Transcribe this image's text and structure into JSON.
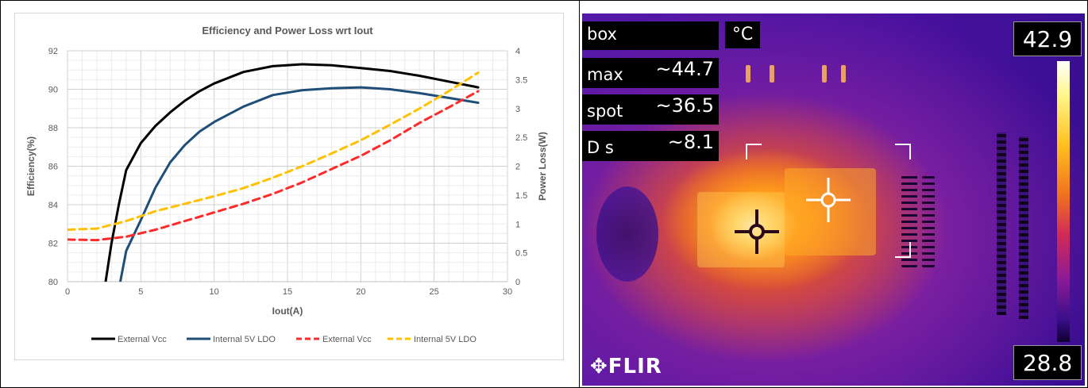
{
  "chart_data": {
    "type": "line",
    "title": "Efficiency and Power Loss wrt Iout",
    "xlabel": "Iout(A)",
    "ylabel": "Efficiency(%)",
    "y2label": "Power Loss(W)",
    "xlim": [
      0,
      30
    ],
    "ylim": [
      80,
      92
    ],
    "y2lim": [
      0,
      4
    ],
    "xticks": [
      "0",
      "5",
      "10",
      "15",
      "20",
      "25",
      "30"
    ],
    "yticks": [
      "80",
      "82",
      "84",
      "86",
      "88",
      "90",
      "92"
    ],
    "y2ticks": [
      "0",
      "0.5",
      "1",
      "1.5",
      "2",
      "2.5",
      "3",
      "3.5",
      "4"
    ],
    "grid": true,
    "legend_position": "bottom",
    "series": [
      {
        "name": "External Vcc",
        "axis": "left",
        "color": "#000000",
        "dash": false,
        "x": [
          2.6,
          3,
          3.5,
          4,
          5,
          6,
          7,
          8,
          9,
          10,
          12,
          14,
          16,
          18,
          20,
          22,
          24,
          26,
          28
        ],
        "y": [
          80,
          82,
          84,
          85.8,
          87.2,
          88.1,
          88.8,
          89.4,
          89.9,
          90.3,
          90.9,
          91.2,
          91.3,
          91.25,
          91.1,
          90.95,
          90.7,
          90.4,
          90.1
        ]
      },
      {
        "name": "Internal 5V LDO",
        "axis": "left",
        "color": "#1f4e79",
        "dash": false,
        "x": [
          3.6,
          4,
          5,
          6,
          7,
          8,
          9,
          10,
          12,
          14,
          16,
          18,
          20,
          22,
          24,
          26,
          28
        ],
        "y": [
          80,
          81.6,
          83.2,
          84.9,
          86.2,
          87.1,
          87.8,
          88.3,
          89.1,
          89.7,
          89.95,
          90.05,
          90.1,
          90,
          89.8,
          89.55,
          89.3
        ],
        "_comment_": ""
      },
      {
        "name": "External Vcc",
        "axis": "right",
        "color": "#ff2a2a",
        "dash": true,
        "x": [
          0,
          2,
          4,
          6,
          8,
          10,
          12,
          14,
          16,
          18,
          20,
          22,
          24,
          26,
          28
        ],
        "y": [
          0.73,
          0.72,
          0.78,
          0.9,
          1.05,
          1.2,
          1.35,
          1.52,
          1.72,
          1.95,
          2.18,
          2.45,
          2.75,
          3.02,
          3.3
        ]
      },
      {
        "name": "Internal 5V LDO",
        "axis": "right",
        "color": "#ffc000",
        "dash": true,
        "x": [
          0,
          2,
          4,
          6,
          8,
          10,
          12,
          14,
          16,
          18,
          20,
          22,
          24,
          26,
          28
        ],
        "y": [
          0.9,
          0.92,
          1.05,
          1.22,
          1.35,
          1.48,
          1.62,
          1.8,
          2.0,
          2.22,
          2.45,
          2.72,
          3.0,
          3.3,
          3.62
        ]
      }
    ]
  },
  "thermal": {
    "labels": [
      {
        "key": "box",
        "value": ""
      },
      {
        "key": "max",
        "value": "~44.7"
      },
      {
        "key": "spot",
        "value": "~36.5"
      },
      {
        "key": "D s",
        "value": "~8.1"
      }
    ],
    "unit": "°C",
    "scale_max": "42.9",
    "scale_min": "28.8",
    "logo": "FLIR"
  }
}
